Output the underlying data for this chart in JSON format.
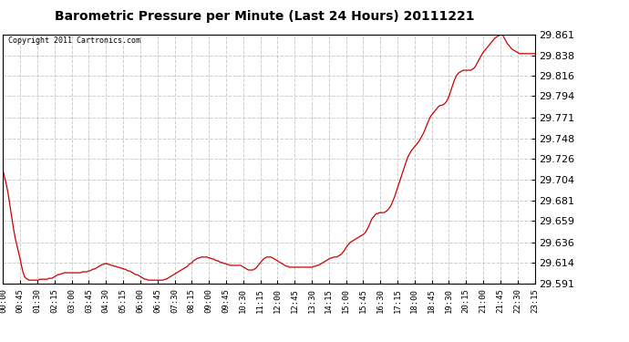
{
  "title": "Barometric Pressure per Minute (Last 24 Hours) 20111221",
  "copyright": "Copyright 2011 Cartronics.com",
  "line_color": "#cc0000",
  "bg_color": "#ffffff",
  "plot_bg_color": "#ffffff",
  "grid_color": "#c8c8c8",
  "ylim": [
    29.591,
    29.861
  ],
  "yticks": [
    29.591,
    29.614,
    29.636,
    29.659,
    29.681,
    29.704,
    29.726,
    29.748,
    29.771,
    29.794,
    29.816,
    29.838,
    29.861
  ],
  "xtick_labels": [
    "00:00",
    "00:45",
    "01:30",
    "02:15",
    "03:00",
    "03:45",
    "04:30",
    "05:15",
    "06:00",
    "06:45",
    "07:30",
    "08:15",
    "09:00",
    "09:45",
    "10:30",
    "11:15",
    "12:00",
    "12:45",
    "13:30",
    "14:15",
    "15:00",
    "15:45",
    "16:30",
    "17:15",
    "18:00",
    "18:45",
    "19:30",
    "20:15",
    "21:00",
    "21:45",
    "22:30",
    "23:15"
  ],
  "pressure_data": [
    29.713,
    29.706,
    29.699,
    29.691,
    29.681,
    29.67,
    29.659,
    29.649,
    29.64,
    29.633,
    29.626,
    29.619,
    29.611,
    29.604,
    29.599,
    29.597,
    29.596,
    29.595,
    29.595,
    29.595,
    29.595,
    29.595,
    29.595,
    29.595,
    29.596,
    29.596,
    29.596,
    29.596,
    29.596,
    29.596,
    29.597,
    29.597,
    29.597,
    29.598,
    29.599,
    29.6,
    29.601,
    29.601,
    29.602,
    29.602,
    29.603,
    29.603,
    29.603,
    29.603,
    29.603,
    29.603,
    29.603,
    29.603,
    29.603,
    29.603,
    29.603,
    29.603,
    29.604,
    29.604,
    29.604,
    29.604,
    29.605,
    29.605,
    29.606,
    29.607,
    29.607,
    29.608,
    29.609,
    29.61,
    29.611,
    29.612,
    29.612,
    29.613,
    29.613,
    29.612,
    29.612,
    29.611,
    29.611,
    29.61,
    29.61,
    29.609,
    29.609,
    29.608,
    29.608,
    29.607,
    29.607,
    29.606,
    29.605,
    29.605,
    29.604,
    29.603,
    29.602,
    29.601,
    29.601,
    29.6,
    29.599,
    29.598,
    29.597,
    29.596,
    29.596,
    29.595,
    29.595,
    29.595,
    29.595,
    29.595,
    29.595,
    29.595,
    29.595,
    29.595,
    29.595,
    29.595,
    29.596,
    29.596,
    29.597,
    29.598,
    29.599,
    29.6,
    29.601,
    29.602,
    29.603,
    29.604,
    29.605,
    29.606,
    29.607,
    29.608,
    29.609,
    29.61,
    29.612,
    29.613,
    29.614,
    29.616,
    29.617,
    29.618,
    29.619,
    29.619,
    29.62,
    29.62,
    29.62,
    29.62,
    29.62,
    29.619,
    29.619,
    29.618,
    29.618,
    29.617,
    29.616,
    29.616,
    29.615,
    29.614,
    29.614,
    29.613,
    29.613,
    29.612,
    29.612,
    29.611,
    29.611,
    29.611,
    29.611,
    29.611,
    29.611,
    29.611,
    29.611,
    29.61,
    29.609,
    29.608,
    29.607,
    29.606,
    29.606,
    29.606,
    29.606,
    29.607,
    29.608,
    29.61,
    29.612,
    29.614,
    29.616,
    29.618,
    29.619,
    29.62,
    29.62,
    29.62,
    29.62,
    29.619,
    29.618,
    29.617,
    29.616,
    29.615,
    29.614,
    29.613,
    29.612,
    29.611,
    29.61,
    29.61,
    29.609,
    29.609,
    29.609,
    29.609,
    29.609,
    29.609,
    29.609,
    29.609,
    29.609,
    29.609,
    29.609,
    29.609,
    29.609,
    29.609,
    29.609,
    29.609,
    29.61,
    29.61,
    29.611,
    29.611,
    29.612,
    29.613,
    29.614,
    29.615,
    29.616,
    29.617,
    29.618,
    29.619,
    29.619,
    29.62,
    29.62,
    29.62,
    29.621,
    29.622,
    29.623,
    29.625,
    29.627,
    29.63,
    29.632,
    29.634,
    29.636,
    29.637,
    29.638,
    29.639,
    29.64,
    29.641,
    29.642,
    29.643,
    29.644,
    29.645,
    29.647,
    29.65,
    29.653,
    29.657,
    29.661,
    29.663,
    29.665,
    29.667,
    29.667,
    29.668,
    29.668,
    29.668,
    29.668,
    29.669,
    29.67,
    29.672,
    29.674,
    29.677,
    29.681,
    29.685,
    29.69,
    29.695,
    29.7,
    29.705,
    29.71,
    29.715,
    29.72,
    29.725,
    29.729,
    29.732,
    29.735,
    29.737,
    29.739,
    29.741,
    29.743,
    29.745,
    29.748,
    29.751,
    29.754,
    29.758,
    29.762,
    29.766,
    29.77,
    29.773,
    29.775,
    29.777,
    29.779,
    29.781,
    29.783,
    29.784,
    29.784,
    29.785,
    29.786,
    29.788,
    29.791,
    29.795,
    29.8,
    29.805,
    29.81,
    29.814,
    29.817,
    29.819,
    29.82,
    29.821,
    29.822,
    29.822,
    29.822,
    29.822,
    29.822,
    29.822,
    29.823,
    29.824,
    29.826,
    29.829,
    29.832,
    29.835,
    29.838,
    29.841,
    29.843,
    29.845,
    29.847,
    29.849,
    29.851,
    29.853,
    29.855,
    29.857,
    29.858,
    29.859,
    29.86,
    29.861,
    29.86,
    29.857,
    29.854,
    29.851,
    29.849,
    29.847,
    29.845,
    29.844,
    29.843,
    29.842,
    29.841,
    29.84,
    29.84,
    29.84,
    29.84,
    29.84,
    29.84,
    29.84,
    29.84,
    29.84,
    29.84,
    29.84
  ]
}
